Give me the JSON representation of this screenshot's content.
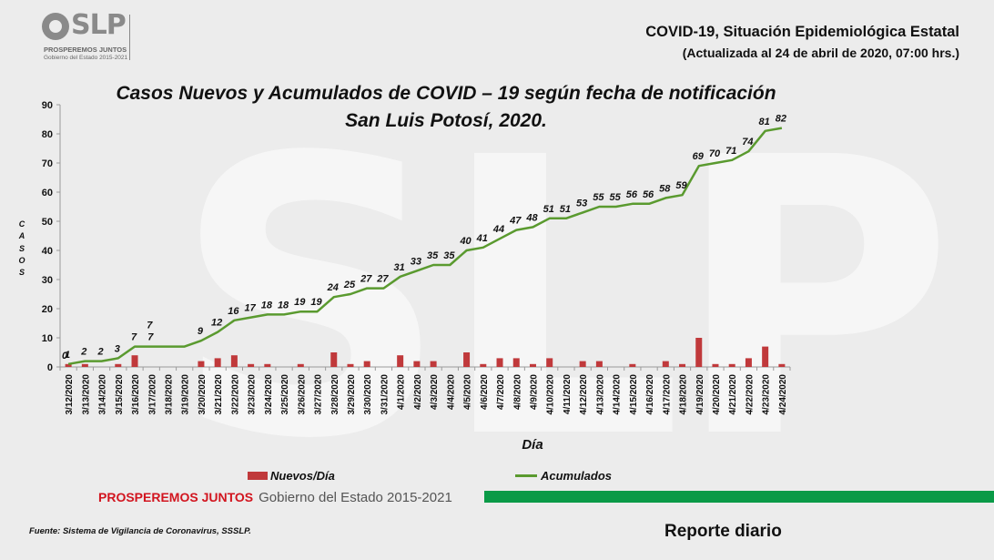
{
  "logo": {
    "brand": "SLP",
    "tagline": "PROSPEREMOS JUNTOS",
    "subtitle": "Gobierno del Estado 2015-2021"
  },
  "header": {
    "line1": "COVID-19, Situación Epidemiológica Estatal",
    "line2": "(Actualizada al 24 de abril de 2020, 07:00 hrs.)"
  },
  "watermark": "SLP",
  "footer": {
    "tagline": "PROSPEREMOS JUNTOS",
    "government": "Gobierno del Estado 2015-2021",
    "source": "Fuente: Sistema de Vigilancia de Coronavirus, SSSLP.",
    "report": "Reporte diario"
  },
  "colors": {
    "bars": "#c0393b",
    "line": "#5a9a2f",
    "footer_green": "#0a9a47",
    "footer_red": "#d2151f"
  },
  "chart_data": {
    "type": "bar+line",
    "title": "Casos Nuevos y Acumulados de COVID – 19 según fecha de notificación",
    "subtitle": "San Luis Potosí, 2020.",
    "xlabel": "Día",
    "ylabel": "CASOS",
    "ylim": [
      0,
      90
    ],
    "yticks": [
      0,
      10,
      20,
      30,
      40,
      50,
      60,
      70,
      80,
      90
    ],
    "grid": false,
    "legend_position": "bottom",
    "categories": [
      "3/12/2020",
      "3/13/2020",
      "3/14/2020",
      "3/15/2020",
      "3/16/2020",
      "3/17/2020",
      "3/18/2020",
      "3/19/2020",
      "3/20/2020",
      "3/21/2020",
      "3/22/2020",
      "3/23/2020",
      "3/24/2020",
      "3/25/2020",
      "3/26/2020",
      "3/27/2020",
      "3/28/2020",
      "3/29/2020",
      "3/30/2020",
      "3/31/2020",
      "4/1/2020",
      "4/2/2020",
      "4/3/2020",
      "4/4/2020",
      "4/5/2020",
      "4/6/2020",
      "4/7/2020",
      "4/8/2020",
      "4/9/2020",
      "4/10/2020",
      "4/11/2020",
      "4/12/2020",
      "4/13/2020",
      "4/14/2020",
      "4/15/2020",
      "4/16/2020",
      "4/17/2020",
      "4/18/2020",
      "4/19/2020",
      "4/20/2020",
      "4/21/2020",
      "4/22/2020",
      "4/23/2020",
      "4/24/2020"
    ],
    "series": [
      {
        "name": "Nuevos/Día",
        "type": "bar",
        "values": [
          1,
          1,
          0,
          1,
          4,
          0,
          0,
          0,
          2,
          3,
          4,
          1,
          1,
          0,
          1,
          0,
          5,
          1,
          2,
          0,
          4,
          2,
          2,
          0,
          5,
          1,
          3,
          3,
          1,
          3,
          0,
          2,
          2,
          0,
          1,
          0,
          2,
          1,
          10,
          1,
          1,
          3,
          7,
          1
        ]
      },
      {
        "name": "Acumulados",
        "type": "line",
        "values": [
          1,
          2,
          2,
          3,
          7,
          7,
          7,
          7,
          9,
          12,
          16,
          17,
          18,
          18,
          19,
          19,
          24,
          25,
          27,
          27,
          31,
          33,
          35,
          35,
          40,
          41,
          44,
          47,
          48,
          51,
          51,
          53,
          55,
          55,
          56,
          56,
          58,
          59,
          69,
          70,
          71,
          74,
          81,
          82
        ],
        "labels": [
          "1",
          "2",
          "2",
          "3",
          "7",
          "7",
          "",
          "",
          "9",
          "12",
          "16",
          "17",
          "18",
          "18",
          "19",
          "19",
          "24",
          "25",
          "27",
          "27",
          "31",
          "33",
          "35",
          "35",
          "40",
          "41",
          "44",
          "47",
          "48",
          "51",
          "51",
          "53",
          "55",
          "55",
          "56",
          "56",
          "58",
          "59",
          "69",
          "70",
          "71",
          "74",
          "81",
          "82"
        ]
      }
    ],
    "extra_labels": [
      "0"
    ]
  }
}
